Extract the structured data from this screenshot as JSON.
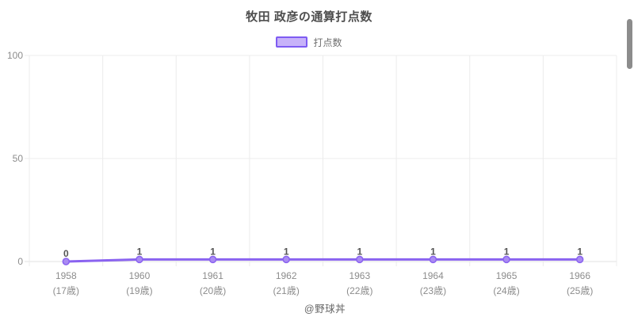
{
  "title": "牧田 政彦の通算打点数",
  "legend": {
    "label": "打点数"
  },
  "footer": "@野球丼",
  "colors": {
    "line": "#8a63f0",
    "point_fill": "#aa8bf2",
    "legend_fill": "#c7b2f9",
    "legend_border": "#7e5bf2",
    "grid": "#ececec",
    "axis": "#e0e0e0",
    "value_label": "#555555",
    "tick_label": "#8c8c8c",
    "title_color": "#4d4d4d"
  },
  "chart_data": {
    "type": "line",
    "title": "牧田 政彦の通算打点数",
    "series_name": "打点数",
    "categories": [
      "1958",
      "1960",
      "1961",
      "1962",
      "1963",
      "1964",
      "1965",
      "1966"
    ],
    "category_sublabels": [
      "(17歳)",
      "(19歳)",
      "(20歳)",
      "(21歳)",
      "(22歳)",
      "(23歳)",
      "(24歳)",
      "(25歳)"
    ],
    "values": [
      0,
      1,
      1,
      1,
      1,
      1,
      1,
      1
    ],
    "point_labels": [
      "0",
      "1",
      "1",
      "1",
      "1",
      "1",
      "1",
      "1"
    ],
    "ylim": [
      0,
      100
    ],
    "yticks": [
      0,
      50,
      100
    ],
    "grid": true,
    "legend_position": "top",
    "xlabel": "",
    "ylabel": ""
  }
}
